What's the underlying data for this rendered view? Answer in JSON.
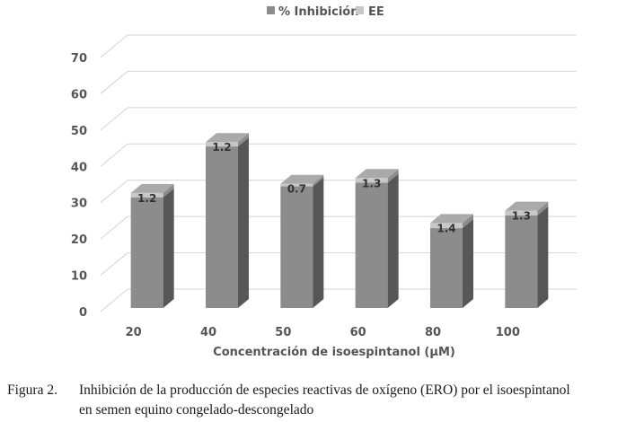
{
  "chart_data": {
    "type": "bar",
    "categories": [
      "20",
      "40",
      "50",
      "60",
      "80",
      "100"
    ],
    "series": [
      {
        "name": "% Inhibición",
        "values": [
          30.5,
          44.5,
          33.5,
          34.5,
          22.0,
          25.5
        ]
      },
      {
        "name": "EE",
        "values": [
          1.2,
          1.2,
          0.7,
          1.3,
          1.4,
          1.3
        ]
      }
    ],
    "data_labels": [
      "1.2",
      "1.2",
      "0.7",
      "1.3",
      "1.4",
      "1.3"
    ],
    "xlabel": "Concentración de isoespintanol (µM)",
    "ylabel": "",
    "ylim": [
      0,
      70
    ],
    "yticks": [
      0,
      10,
      20,
      30,
      40,
      50,
      60,
      70
    ],
    "grid": true,
    "legend_position": "top",
    "style": "3d-column",
    "colors": {
      "inhibicion": "#8c8c8c",
      "ee": "#c8c8c8",
      "grid": "#d4d4d4"
    }
  },
  "caption": {
    "number": "Figura 2.",
    "line1": "Inhibición de la producción de especies reactivas de oxígeno (ERO) por el isoespintanol",
    "line2": "en semen equino congelado-descongelado"
  }
}
